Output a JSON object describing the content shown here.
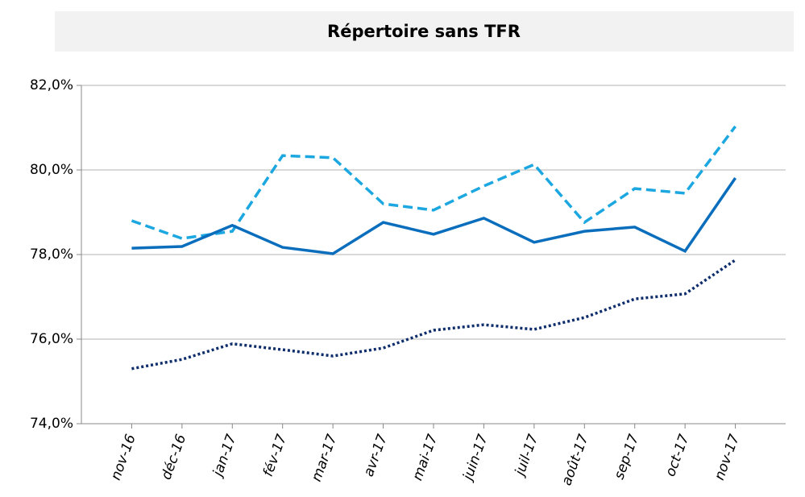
{
  "chart_data": {
    "type": "line",
    "title": "Répertoire sans TFR",
    "categories": [
      "nov-16",
      "déc-16",
      "jan-17",
      "fév-17",
      "mar-17",
      "avr-17",
      "mai-17",
      "juin-17",
      "juil-17",
      "août-17",
      "sep-17",
      "oct-17",
      "nov-17"
    ],
    "series": [
      {
        "color": "#1ca7e0",
        "line_style": "dashed",
        "values": [
          78.8,
          78.38,
          78.55,
          80.34,
          80.29,
          79.2,
          79.05,
          79.62,
          80.13,
          78.76,
          79.56,
          79.45,
          81.03
        ]
      },
      {
        "color": "#0a6ebd",
        "line_style": "solid",
        "values": [
          78.15,
          78.19,
          78.69,
          78.17,
          78.02,
          78.76,
          78.48,
          78.86,
          78.29,
          78.55,
          78.65,
          78.08,
          79.81
        ]
      },
      {
        "color": "#0d2d6b",
        "line_style": "dotted",
        "values": [
          75.3,
          75.52,
          75.89,
          75.75,
          75.6,
          75.79,
          76.21,
          76.34,
          76.23,
          76.51,
          76.95,
          77.07,
          77.87
        ]
      }
    ],
    "ylim": [
      74,
      82
    ],
    "yticks": [
      {
        "value": 74,
        "label": "74,0%"
      },
      {
        "value": 76,
        "label": "76,0%"
      },
      {
        "value": 78,
        "label": "78,0%"
      },
      {
        "value": 80,
        "label": "80,0%"
      },
      {
        "value": 82,
        "label": "82,0%"
      }
    ],
    "grid": true
  }
}
